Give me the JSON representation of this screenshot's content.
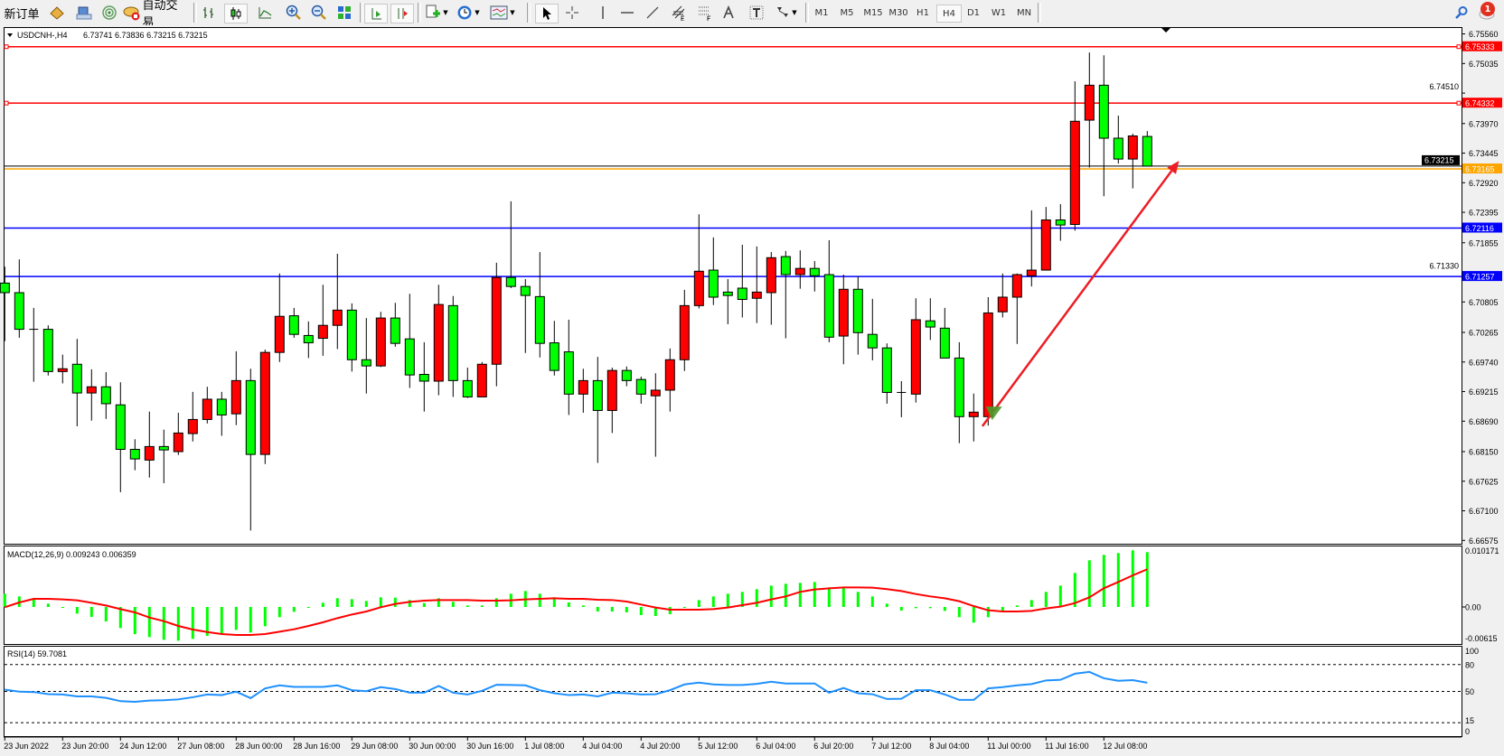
{
  "toolbar": {
    "new_order_label": "新订单",
    "auto_trading_label": "自动交易",
    "timeframes": [
      "M1",
      "M5",
      "M15",
      "M30",
      "H1",
      "H4",
      "D1",
      "W1",
      "MN"
    ],
    "active_timeframe": "H4",
    "notification_count": "1"
  },
  "chart_header": {
    "symbol_label": "USDCNH-,H4",
    "ohlc_text": "6.73741 6.73836 6.73215 6.73215"
  },
  "colors": {
    "bull_candle": "#ff0000",
    "bear_candle": "#00ff00",
    "support_line": "#0000ff",
    "resistance_line": "#ff0000",
    "current_level_line": "#ffa500",
    "macd_histogram": "#00ff00",
    "macd_signal": "#ff0000",
    "rsi_line": "#1e90ff"
  },
  "chart_data": [
    {
      "type": "candlestick",
      "title": "USDCNH-,H4",
      "ylim": [
        6.66575,
        6.7556
      ],
      "price_ticks": [
        "6.75560",
        "6.75035",
        "6.74510",
        "6.73970",
        "6.73445",
        "6.72920",
        "6.72395",
        "6.71855",
        "6.71330",
        "6.70805",
        "6.70265",
        "6.69740",
        "6.69215",
        "6.68690",
        "6.68150",
        "6.67625",
        "6.67100",
        "6.66575"
      ],
      "time_labels": [
        "23 Jun 2022",
        "23 Jun 20:00",
        "24 Jun 12:00",
        "27 Jun 08:00",
        "28 Jun 00:00",
        "28 Jun 16:00",
        "29 Jun 08:00",
        "30 Jun 00:00",
        "30 Jun 16:00",
        "1 Jul 08:00",
        "4 Jul 04:00",
        "4 Jul 20:00",
        "5 Jul 12:00",
        "6 Jul 04:00",
        "6 Jul 20:00",
        "7 Jul 12:00",
        "8 Jul 04:00",
        "11 Jul 00:00",
        "11 Jul 16:00",
        "12 Jul 08:00"
      ],
      "time_label_every_bars": 4,
      "ohlc": [
        [
          6.7114,
          6.7143,
          6.7011,
          6.7097
        ],
        [
          6.7097,
          6.7156,
          6.7017,
          6.7032
        ],
        [
          6.7032,
          6.707,
          6.6939,
          6.7032
        ],
        [
          6.7032,
          6.7039,
          6.695,
          6.6957
        ],
        [
          6.6957,
          6.6987,
          6.6936,
          6.6962
        ],
        [
          6.697,
          6.7015,
          6.686,
          6.6919
        ],
        [
          6.6919,
          6.6961,
          6.687,
          6.693
        ],
        [
          6.693,
          6.6956,
          6.6873,
          6.69
        ],
        [
          6.6898,
          6.6938,
          6.6743,
          6.6819
        ],
        [
          6.6819,
          6.6837,
          6.6782,
          6.6802
        ],
        [
          6.68,
          6.6886,
          6.6769,
          6.6824
        ],
        [
          6.6824,
          6.6854,
          6.6759,
          6.6818
        ],
        [
          6.6815,
          6.6884,
          6.6809,
          6.6848
        ],
        [
          6.6847,
          6.6921,
          6.6833,
          6.6872
        ],
        [
          6.6872,
          6.693,
          6.6865,
          6.6908
        ],
        [
          6.6908,
          6.6921,
          6.6843,
          6.688
        ],
        [
          6.6882,
          6.6993,
          6.6862,
          6.6941
        ],
        [
          6.6941,
          6.6962,
          6.6675,
          6.681
        ],
        [
          6.681,
          6.6996,
          6.6793,
          6.6991
        ],
        [
          6.6991,
          6.7131,
          6.6974,
          6.7055
        ],
        [
          6.7056,
          6.707,
          6.7017,
          6.7023
        ],
        [
          6.7021,
          6.7046,
          6.6981,
          6.7008
        ],
        [
          6.7016,
          6.7111,
          6.6985,
          6.7039
        ],
        [
          6.7039,
          6.7166,
          6.6997,
          6.7066
        ],
        [
          6.7066,
          6.7078,
          6.6957,
          6.6978
        ],
        [
          6.6978,
          6.7052,
          6.6918,
          6.6967
        ],
        [
          6.6967,
          6.7063,
          6.6965,
          6.7052
        ],
        [
          6.7052,
          6.7079,
          6.7001,
          6.7007
        ],
        [
          6.7015,
          6.7095,
          6.6928,
          6.6951
        ],
        [
          6.6952,
          6.7009,
          6.6886,
          6.694
        ],
        [
          6.694,
          6.7111,
          6.6915,
          6.7076
        ],
        [
          6.7074,
          6.7091,
          6.6912,
          6.6941
        ],
        [
          6.6941,
          6.6964,
          6.691,
          6.6912
        ],
        [
          6.6912,
          6.6974,
          6.6912,
          6.697
        ],
        [
          6.697,
          6.715,
          6.6931,
          6.7124
        ],
        [
          6.7124,
          6.7259,
          6.7105,
          6.7108
        ],
        [
          6.7108,
          6.7121,
          6.699,
          6.7092
        ],
        [
          6.709,
          6.7169,
          6.6982,
          6.7007
        ],
        [
          6.7008,
          6.7047,
          6.695,
          6.6959
        ],
        [
          6.6992,
          6.7049,
          6.688,
          6.6917
        ],
        [
          6.6917,
          6.6962,
          6.6884,
          6.6941
        ],
        [
          6.6941,
          6.6983,
          6.6795,
          6.6888
        ],
        [
          6.6888,
          6.6964,
          6.6848,
          6.6959
        ],
        [
          6.6959,
          6.6966,
          6.6931,
          6.6941
        ],
        [
          6.6943,
          6.6948,
          6.69,
          6.6917
        ],
        [
          6.6914,
          6.6954,
          6.6806,
          6.6924
        ],
        [
          6.6924,
          6.6998,
          6.6886,
          6.6978
        ],
        [
          6.6978,
          6.7102,
          6.6958,
          6.7074
        ],
        [
          6.7074,
          6.7236,
          6.7069,
          6.7135
        ],
        [
          6.7137,
          6.7195,
          6.7075,
          6.7089
        ],
        [
          6.7098,
          6.7121,
          6.7041,
          6.7092
        ],
        [
          6.7105,
          6.7182,
          6.7053,
          6.7085
        ],
        [
          6.7087,
          6.7179,
          6.7043,
          6.7098
        ],
        [
          6.7097,
          6.7169,
          6.704,
          6.7159
        ],
        [
          6.7161,
          6.7171,
          6.7016,
          6.7129
        ],
        [
          6.7129,
          6.7172,
          6.7104,
          6.714
        ],
        [
          6.714,
          6.7153,
          6.7099,
          6.7127
        ],
        [
          6.7129,
          6.719,
          6.7009,
          6.7018
        ],
        [
          6.702,
          6.7129,
          6.697,
          6.7103
        ],
        [
          6.7103,
          6.7126,
          6.6987,
          6.7026
        ],
        [
          6.7023,
          6.7086,
          6.6977,
          6.6999
        ],
        [
          6.6999,
          6.7007,
          6.69,
          6.692
        ],
        [
          6.692,
          6.694,
          6.6876,
          6.692
        ],
        [
          6.6917,
          6.7087,
          6.6902,
          6.7049
        ],
        [
          6.7047,
          6.7087,
          6.7013,
          6.7036
        ],
        [
          6.7034,
          6.707,
          6.6981,
          6.6981
        ],
        [
          6.6981,
          6.7009,
          6.683,
          6.6877
        ],
        [
          6.6877,
          6.6918,
          6.6833,
          6.6885
        ],
        [
          6.6877,
          6.7089,
          6.6861,
          6.7061
        ],
        [
          6.7063,
          6.7131,
          6.7053,
          6.7089
        ],
        [
          6.7089,
          6.7131,
          6.7006,
          6.7129
        ],
        [
          6.7127,
          6.7243,
          6.7108,
          6.7137
        ],
        [
          6.7137,
          6.7249,
          6.7137,
          6.7226
        ],
        [
          6.7226,
          6.7254,
          6.7189,
          6.7217
        ],
        [
          6.7218,
          6.7472,
          6.7207,
          6.7401
        ],
        [
          6.7403,
          6.7523,
          6.7319,
          6.7465
        ],
        [
          6.7465,
          6.7518,
          6.7268,
          6.7371
        ],
        [
          6.7371,
          6.7411,
          6.7326,
          6.7334
        ],
        [
          6.7334,
          6.7379,
          6.7282,
          6.7375
        ],
        [
          6.73741,
          6.73836,
          6.73215,
          6.73215
        ]
      ],
      "horizontal_lines": [
        {
          "price": "6.75333",
          "color": "#ff0000",
          "handles": true
        },
        {
          "price": "6.74332",
          "color": "#ff0000",
          "handles": true
        },
        {
          "price": "6.73165",
          "color": "#ffa500",
          "handles": false
        },
        {
          "price": "6.72116",
          "color": "#0000ff",
          "handles": false
        },
        {
          "price": "6.71257",
          "color": "#0000ff",
          "handles": false
        }
      ],
      "current_price": "6.73215",
      "trendline": {
        "from": {
          "bar": 67.6,
          "price": 6.686
        },
        "to": {
          "bar": 81.2,
          "price": 6.7331
        },
        "color": "#ee1c24",
        "arrow": true
      },
      "marker": {
        "bar": 68.4,
        "price": 6.6887,
        "shape": "triangle-down",
        "color": "#4a9a2a"
      }
    },
    {
      "type": "bar+line",
      "label": "MACD(12,26,9) 0.009243 0.006359",
      "ticks": [
        "0.010171",
        "0.00",
        "-0.00615"
      ],
      "ylim": [
        -0.00615,
        0.010171
      ],
      "histogram": [
        0.002235,
        0.001778,
        0.001422,
        0.000559,
        -0.000102,
        -0.001118,
        -0.001676,
        -0.002438,
        -0.003556,
        -0.004572,
        -0.00508,
        -0.005537,
        -0.00569,
        -0.005385,
        -0.004877,
        -0.00447,
        -0.003861,
        -0.004318,
        -0.003251,
        -0.001727,
        -0.000813,
        -0.000152,
        0.000711,
        0.001473,
        0.001321,
        0.001016,
        0.001626,
        0.001575,
        0.001168,
        0.00066,
        0.001473,
        0.000864,
        0.000254,
        0.000254,
        0.001473,
        0.002235,
        0.002692,
        0.002235,
        0.001626,
        0.000762,
        0.000254,
        -0.000762,
        -0.000762,
        -0.000914,
        -0.001372,
        -0.001524,
        -0.001219,
        -5.1e-05,
        0.001168,
        0.001778,
        0.002235,
        0.00254,
        0.002997,
        0.003607,
        0.003912,
        0.004064,
        0.004216,
        0.003302,
        0.003302,
        0.00254,
        0.001778,
        0.000559,
        -0.00061,
        -0.000203,
        -0.000203,
        -0.00066,
        -0.001727,
        -0.002642,
        -0.001727,
        -0.00066,
        0.000254,
        0.001168,
        0.00254,
        0.003607,
        0.00574,
        0.007874,
        0.008788,
        0.009093,
        0.00955,
        0.009243
      ],
      "signal": [
        -5e-05,
        0.00076,
        0.00137,
        0.00137,
        0.00127,
        0.00112,
        0.00071,
        0.00025,
        -0.00036,
        -0.00091,
        -0.00178,
        -0.00239,
        -0.0032,
        -0.00381,
        -0.00422,
        -0.00457,
        -0.00472,
        -0.00472,
        -0.00457,
        -0.00417,
        -0.00376,
        -0.0032,
        -0.00259,
        -0.00188,
        -0.00127,
        -0.00076,
        -5e-05,
        0.00051,
        0.00086,
        0.00107,
        0.00117,
        0.00117,
        0.00117,
        0.00107,
        0.00107,
        0.00112,
        0.00127,
        0.00137,
        0.00147,
        0.00137,
        0.00137,
        0.00122,
        0.00117,
        0.00091,
        0.00041,
        -0.0001,
        -0.00046,
        -0.00046,
        -0.00046,
        -0.00036,
        -0.0001,
        0.0003,
        0.00071,
        0.00127,
        0.00178,
        0.00254,
        0.00295,
        0.00315,
        0.0033,
        0.0033,
        0.00325,
        0.003,
        0.00269,
        0.00218,
        0.00178,
        0.00147,
        0.00097,
        0.00015,
        -0.00056,
        -0.00076,
        -0.00076,
        -0.00066,
        -0.00025,
        5e-05,
        0.00066,
        0.00163,
        0.00315,
        0.00422,
        0.00533,
        0.006359
      ]
    },
    {
      "type": "line",
      "label": "RSI(14) 59.7081",
      "ticks": [
        "100",
        "80",
        "50",
        "15",
        "0"
      ],
      "levels": [
        80,
        50,
        15
      ],
      "ylim": [
        0,
        100
      ],
      "values": [
        52,
        49.7,
        49.3,
        47,
        46.6,
        44.5,
        44.5,
        42.8,
        39.1,
        38.4,
        39.8,
        40.1,
        41.1,
        43.5,
        46.6,
        45.9,
        49.7,
        42.5,
        53.4,
        56.8,
        55.1,
        55.1,
        55.1,
        56.8,
        51.4,
        50.3,
        54.8,
        52.7,
        48.6,
        48.6,
        56.1,
        48.6,
        46.6,
        50.7,
        57.5,
        57.2,
        56.8,
        51.4,
        48,
        45.9,
        46.6,
        44.5,
        48.6,
        48,
        46.6,
        46.9,
        51.4,
        57.8,
        59.9,
        57.8,
        57.2,
        57.2,
        58.5,
        60.9,
        58.9,
        58.9,
        58.9,
        48.6,
        53.8,
        48,
        46.9,
        41.5,
        41.8,
        51.4,
        51.4,
        46.6,
        40.5,
        40.5,
        53.4,
        54.8,
        56.8,
        58.2,
        62.3,
        63,
        69.8,
        71.8,
        64.7,
        61.9,
        62.6,
        59.7081
      ]
    }
  ]
}
